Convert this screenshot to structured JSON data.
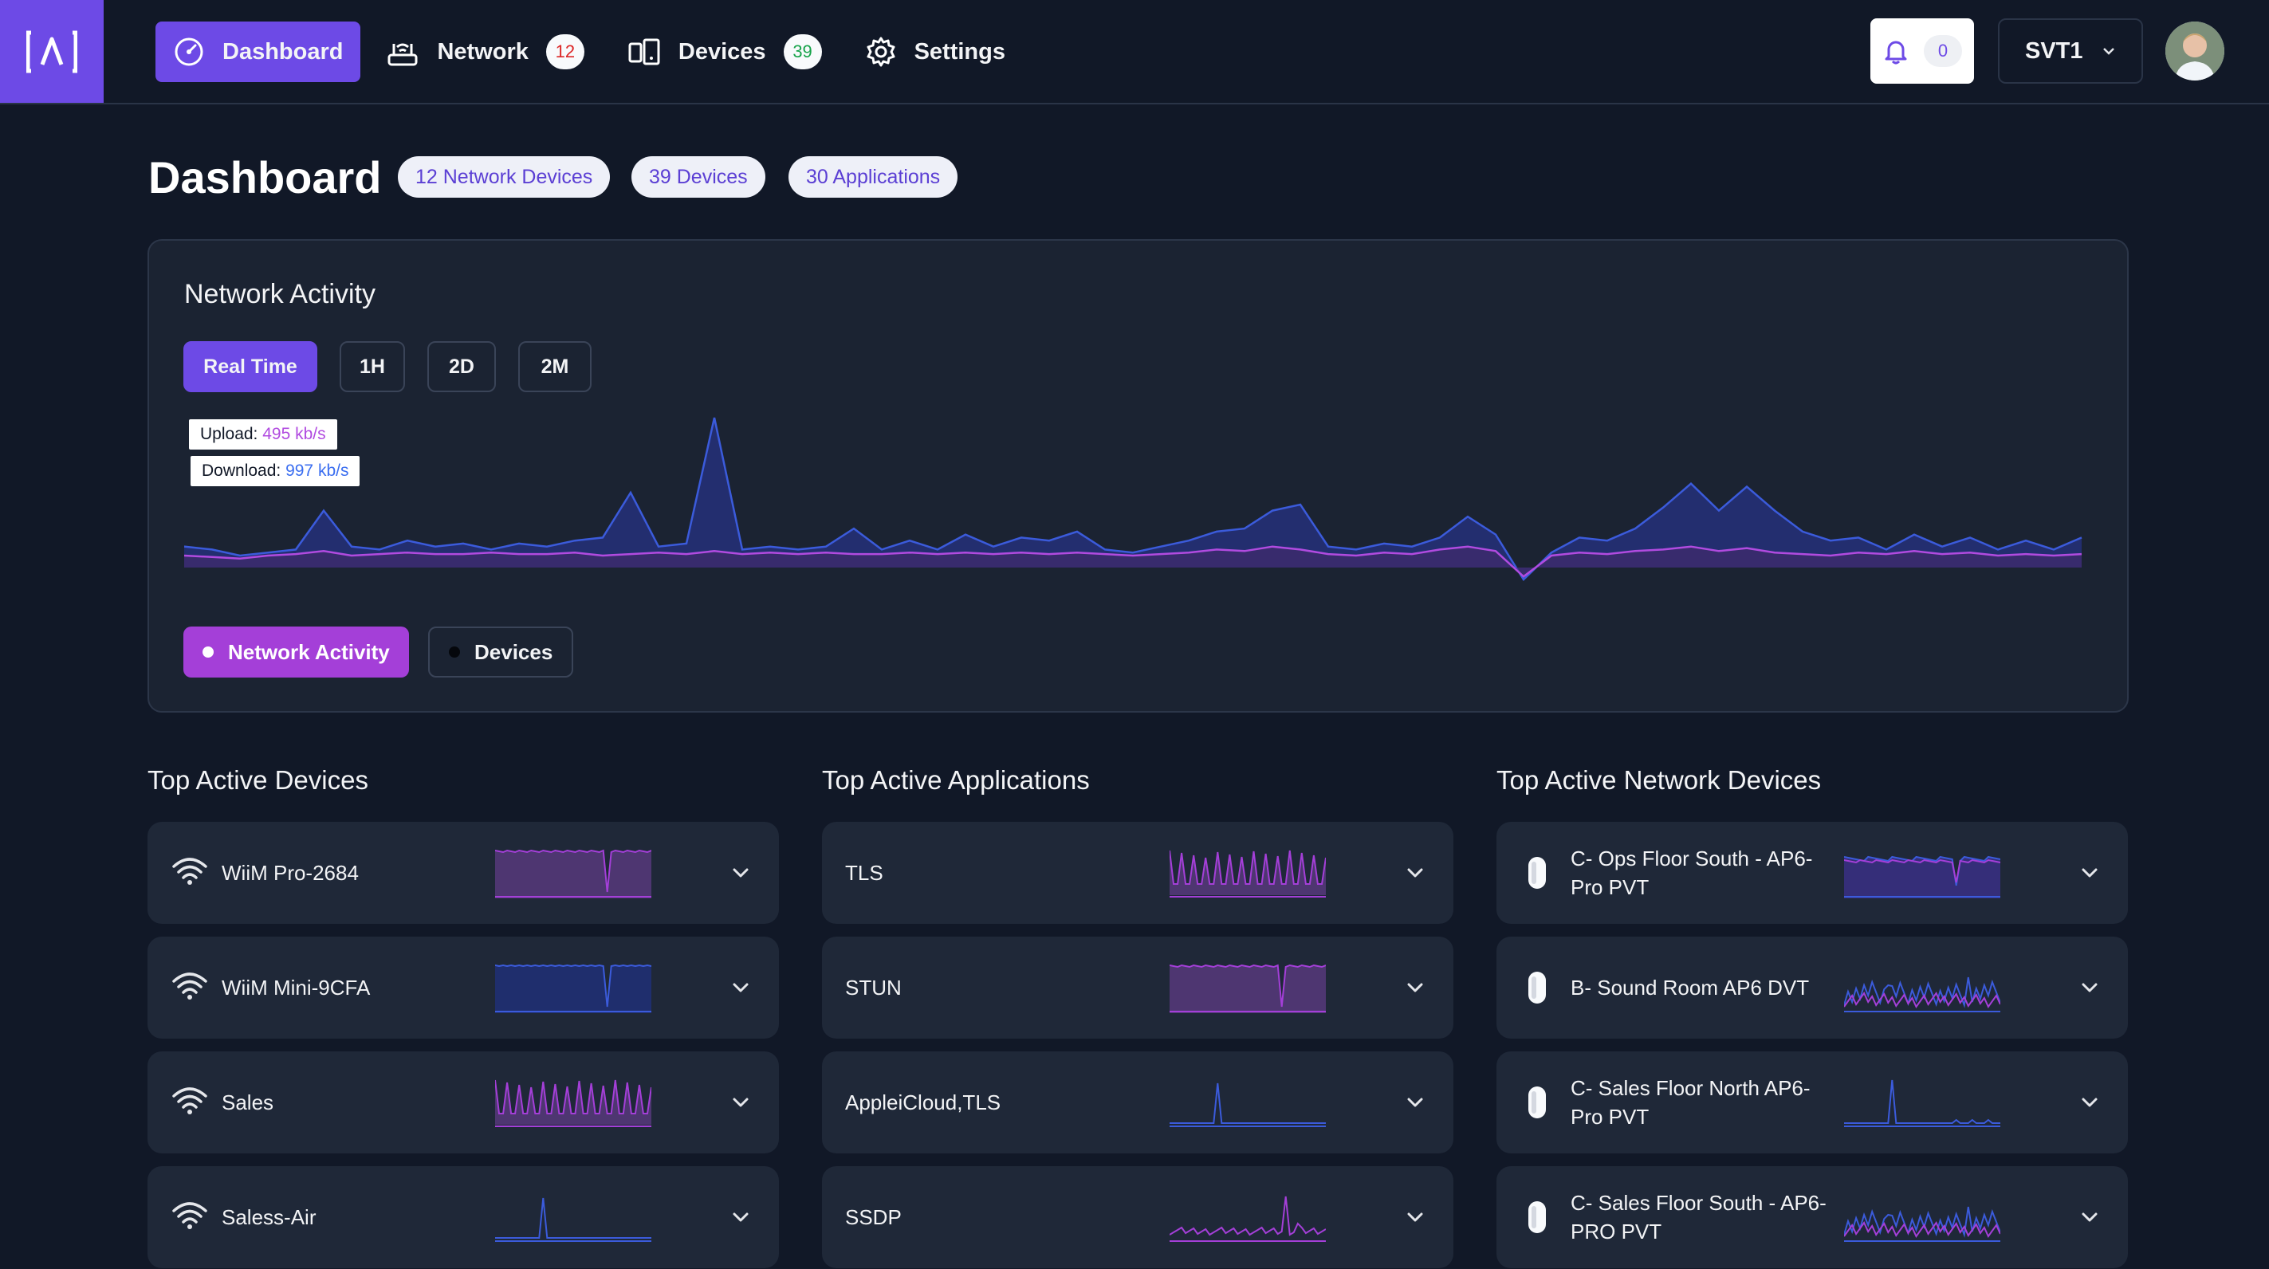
{
  "nav": {
    "items": [
      {
        "label": "Dashboard",
        "icon": "gauge-icon",
        "active": true
      },
      {
        "label": "Network",
        "icon": "router-icon",
        "badge": "12",
        "badge_color": "#dc2626"
      },
      {
        "label": "Devices",
        "icon": "devices-icon",
        "badge": "39",
        "badge_color": "#16a34a"
      },
      {
        "label": "Settings",
        "icon": "gear-icon"
      }
    ],
    "notifications": {
      "icon": "bell-icon",
      "count": "0"
    },
    "site": {
      "value": "SVT1"
    }
  },
  "header": {
    "title": "Dashboard",
    "pills": [
      "12 Network Devices",
      "39 Devices",
      "30 Applications"
    ]
  },
  "network_activity": {
    "title": "Network Activity",
    "ranges": [
      "Real Time",
      "1H",
      "2D",
      "2M"
    ],
    "selected_range": "Real Time",
    "tooltip": {
      "upload_label": "Upload:",
      "upload_value": "495 kb/s",
      "download_label": "Download:",
      "download_value": "997 kb/s"
    },
    "legend": [
      {
        "label": "Network Activity",
        "active": true
      },
      {
        "label": "Devices",
        "active": false
      }
    ],
    "colors": {
      "download": "#3b5bdb",
      "upload": "#b14be0",
      "accent": "#6d4ae6",
      "activity": "#a43fd8"
    }
  },
  "chart_data": {
    "type": "area",
    "series": [
      {
        "name": "Download",
        "values": [
          14,
          12,
          8,
          10,
          12,
          38,
          14,
          12,
          18,
          14,
          16,
          12,
          16,
          14,
          18,
          20,
          50,
          14,
          16,
          100,
          12,
          14,
          12,
          14,
          26,
          12,
          18,
          12,
          22,
          14,
          20,
          18,
          24,
          12,
          10,
          14,
          18,
          24,
          26,
          38,
          42,
          14,
          12,
          16,
          14,
          20,
          34,
          22,
          -8,
          10,
          20,
          18,
          26,
          40,
          56,
          38,
          54,
          38,
          24,
          18,
          20,
          12,
          22,
          14,
          20,
          12,
          18,
          12,
          20
        ]
      },
      {
        "name": "Upload",
        "values": [
          8,
          7,
          6,
          8,
          9,
          11,
          8,
          9,
          10,
          9,
          9,
          10,
          9,
          9,
          10,
          8,
          9,
          10,
          9,
          11,
          9,
          10,
          9,
          10,
          9,
          9,
          10,
          9,
          10,
          9,
          10,
          9,
          10,
          9,
          8,
          9,
          10,
          12,
          11,
          14,
          12,
          9,
          8,
          10,
          9,
          12,
          14,
          11,
          -6,
          8,
          10,
          9,
          11,
          12,
          14,
          11,
          13,
          10,
          9,
          8,
          10,
          9,
          11,
          9,
          10,
          8,
          9,
          8,
          9
        ]
      }
    ]
  },
  "columns": [
    {
      "title": "Top Active Devices",
      "rows": [
        {
          "name": "WiiM Pro-2684",
          "icon": "wifi-icon",
          "spark": "flat-dip-purple"
        },
        {
          "name": "WiiM Mini-9CFA",
          "icon": "wifi-icon",
          "spark": "flat-dip-blue"
        },
        {
          "name": "Sales",
          "icon": "wifi-icon",
          "spark": "dense-purple"
        },
        {
          "name": "Saless-Air",
          "icon": "wifi-icon",
          "spark": "spike-blue"
        }
      ]
    },
    {
      "title": "Top Active Applications",
      "rows": [
        {
          "name": "TLS",
          "icon": "",
          "spark": "dense-purple"
        },
        {
          "name": "STUN",
          "icon": "",
          "spark": "flat-dip-purple"
        },
        {
          "name": "AppleiCloud,TLS",
          "icon": "",
          "spark": "spike-blue"
        },
        {
          "name": "SSDP",
          "icon": "",
          "spark": "noise-purple"
        }
      ]
    },
    {
      "title": "Top Active Network Devices",
      "rows": [
        {
          "name": "C- Ops Floor South - AP6-Pro PVT",
          "icon": "access-point-icon",
          "spark": "flat-dip-mixed"
        },
        {
          "name": "B- Sound Room AP6 DVT",
          "icon": "access-point-icon",
          "spark": "noise-mixed"
        },
        {
          "name": "C- Sales Floor North AP6-Pro PVT",
          "icon": "access-point-icon",
          "spark": "spike-blue-low"
        },
        {
          "name": "C- Sales Floor South - AP6-PRO PVT",
          "icon": "access-point-icon",
          "spark": "noise-mixed"
        }
      ]
    }
  ]
}
